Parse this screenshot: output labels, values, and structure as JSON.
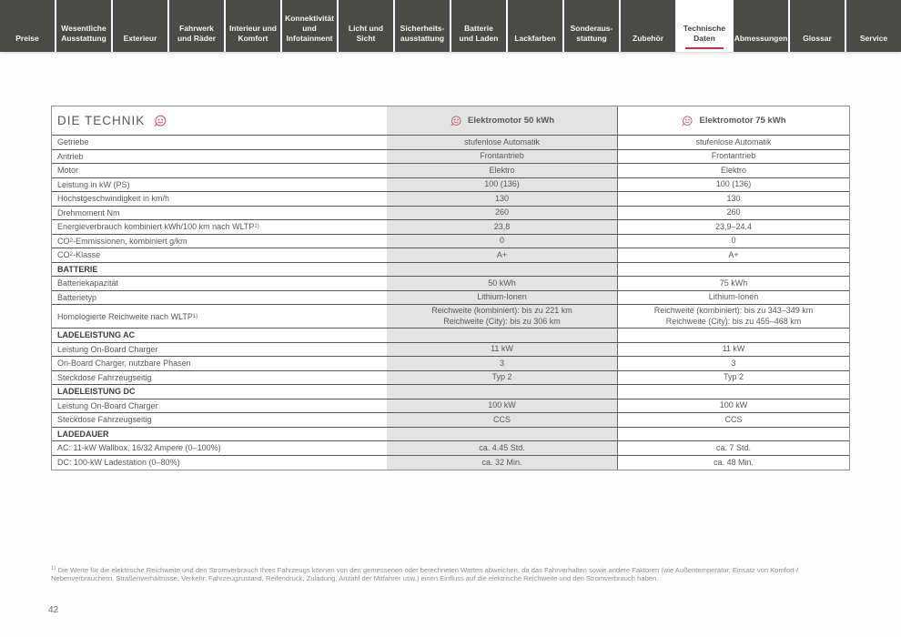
{
  "colors": {
    "accent_red": "#c22e4e",
    "icon_red": "#c4566b",
    "tab_bar_bg": "#4a4a48",
    "shaded_column_bg": "#e3e3e3"
  },
  "tabs": {
    "active_id": "technische-daten",
    "items": [
      {
        "id": "preise",
        "label": "Preise"
      },
      {
        "id": "wesentliche-ausstattung",
        "label": "Wesentliche\nAusstattung"
      },
      {
        "id": "exterieur",
        "label": "Exterieur"
      },
      {
        "id": "fahrwerk-und-raeder",
        "label": "Fahrwerk\nund Räder"
      },
      {
        "id": "interieur-und-komfort",
        "label": "Interieur und\nKomfort"
      },
      {
        "id": "konnektivitaet",
        "label": "Konnektivität\nund\nInfotainment"
      },
      {
        "id": "licht-und-sicht",
        "label": "Licht und Sicht"
      },
      {
        "id": "sicherheitsausstattung",
        "label": "Sicherheits-\nausstattung"
      },
      {
        "id": "batterie-und-laden",
        "label": "Batterie\nund Laden"
      },
      {
        "id": "lackfarben",
        "label": "Lackfarben"
      },
      {
        "id": "sonderausstattung",
        "label": "Sonderaus-\nstattung"
      },
      {
        "id": "zubehoer",
        "label": "Zubehör"
      },
      {
        "id": "technische-daten",
        "label": "Technische\nDaten"
      },
      {
        "id": "abmessungen",
        "label": "Abmessungen"
      },
      {
        "id": "glossar",
        "label": "Glossar"
      },
      {
        "id": "service",
        "label": "Service"
      }
    ]
  },
  "table": {
    "title": "DIE TECHNIK",
    "columns": [
      "Elektromotor 50 kWh",
      "Elektromotor 75 kWh"
    ],
    "rows": [
      {
        "label": "Getriebe",
        "v50": "stufenlose Automatik",
        "v75": "stufenlose Automatik"
      },
      {
        "label": "Antrieb",
        "v50": "Frontantrieb",
        "v75": "Frontantrieb"
      },
      {
        "label": "Motor",
        "v50": "Elektro",
        "v75": "Elektro"
      },
      {
        "label": "Leistung in kW (PS)",
        "v50": "100 (136)",
        "v75": "100 (136)"
      },
      {
        "label": "Höchstgeschwindigkeit in km/h",
        "v50": "130",
        "v75": "130"
      },
      {
        "label": "Drehmoment Nm",
        "v50": "260",
        "v75": "260"
      },
      {
        "label": "Energieverbrauch kombiniert kWh/100 km nach WLTP^1)^",
        "v50": "23,8",
        "v75": "23,9–24,4"
      },
      {
        "label": "CO~2~-Emmissionen, kombiniert g/km",
        "v50": "0",
        "v75": "0"
      },
      {
        "label": "CO~2~-Klasse",
        "v50": "A+",
        "v75": "A+"
      },
      {
        "section": "BATTERIE"
      },
      {
        "label": "Batteriekapazität",
        "v50": "50 kWh",
        "v75": "75 kWh"
      },
      {
        "label": "Batterietyp",
        "v50": "Lithium-Ionen",
        "v75": "Lithium-Ionen"
      },
      {
        "label": "Homologierte Reichweite nach WLTP^1)^",
        "v50": [
          "Reichweite (kombiniert): bis zu 221 km",
          "Reichweite (City): bis zu 306 km"
        ],
        "v75": [
          "Reichweite (kombiniert): bis zu 343–349 km",
          "Reichweite (City): bis zu 455–468 km"
        ]
      },
      {
        "section": "LADELEISTUNG AC"
      },
      {
        "label": "Leistung On-Board Charger",
        "v50": "11 kW",
        "v75": "11 kW"
      },
      {
        "label": "On-Board Charger, nutzbare Phasen",
        "v50": "3",
        "v75": "3"
      },
      {
        "label": "Steckdose Fahrzeugseitig",
        "v50": "Typ 2",
        "v75": "Typ 2"
      },
      {
        "section": "LADELEISTUNG DC"
      },
      {
        "label": "Leistung On-Board Charger",
        "v50": "100 kW",
        "v75": "100 kW"
      },
      {
        "label": "Steckdose Fahrzeugseitig",
        "v50": "CCS",
        "v75": "CCS"
      },
      {
        "section": "LADEDAUER"
      },
      {
        "label": "AC: 11-kW Wallbox, 16/32 Ampere (0–100%)",
        "v50": "ca. 4.45 Std.",
        "v75": "ca. 7 Std."
      },
      {
        "label": "DC: 100-kW Ladestation (0–80%)",
        "v50": "ca. 32 Min.",
        "v75": "ca. 48 Min."
      }
    ]
  },
  "footnote": "^1)^ Die Werte für die elektrische Reichweite und den Stromverbrauch Ihres Fahrzeugs können von den gemessenen oder berechneten Werten abweichen, da das Fahrverhalten sowie andere Faktoren (wie Außentemperatur, Einsatz von Komfort-/ Nebenverbrauchern, Straßenverhältnisse, Verkehr, Fahrzeugzustand, Reifendruck, Zuladung, Anzahl der Mitfahrer usw.) einen Einfluss auf die elektrische Reichweite und den Stromverbrauch haben.",
  "page_number": "42"
}
